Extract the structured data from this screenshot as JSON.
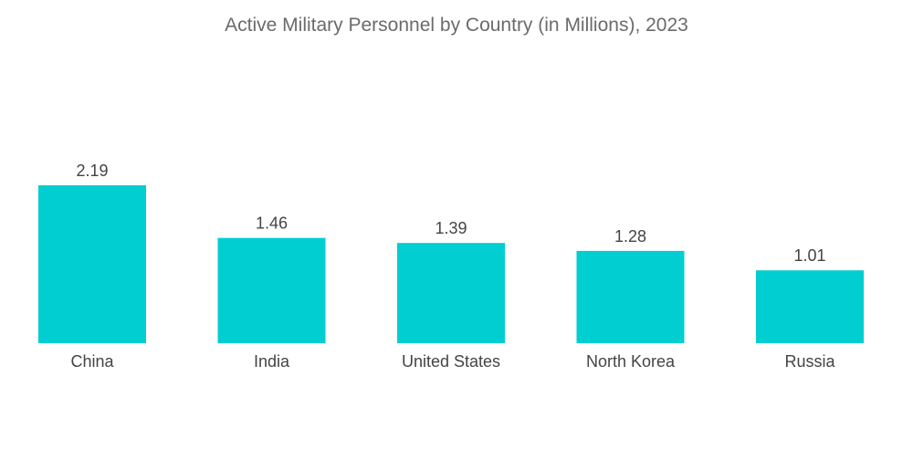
{
  "chart_data": {
    "type": "bar",
    "title": "Active Military Personnel by Country (in Millions), 2023",
    "categories": [
      "China",
      "India",
      "United States",
      "North Korea",
      "Russia"
    ],
    "values": [
      2.19,
      1.46,
      1.39,
      1.28,
      1.01
    ],
    "value_labels": [
      "2.19",
      "1.46",
      "1.39",
      "1.28",
      "1.01"
    ],
    "xlabel": "",
    "ylabel": "",
    "ylim": [
      0,
      2.19
    ],
    "grid": false,
    "legend": "none",
    "bar_color": "#00ced1"
  }
}
